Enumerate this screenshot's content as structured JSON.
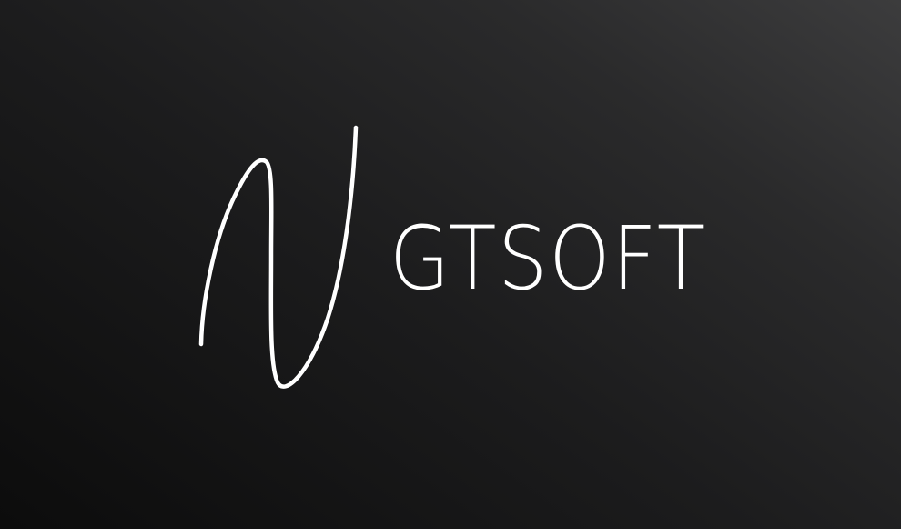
{
  "logo": {
    "wordmark": "GTSOFT"
  }
}
